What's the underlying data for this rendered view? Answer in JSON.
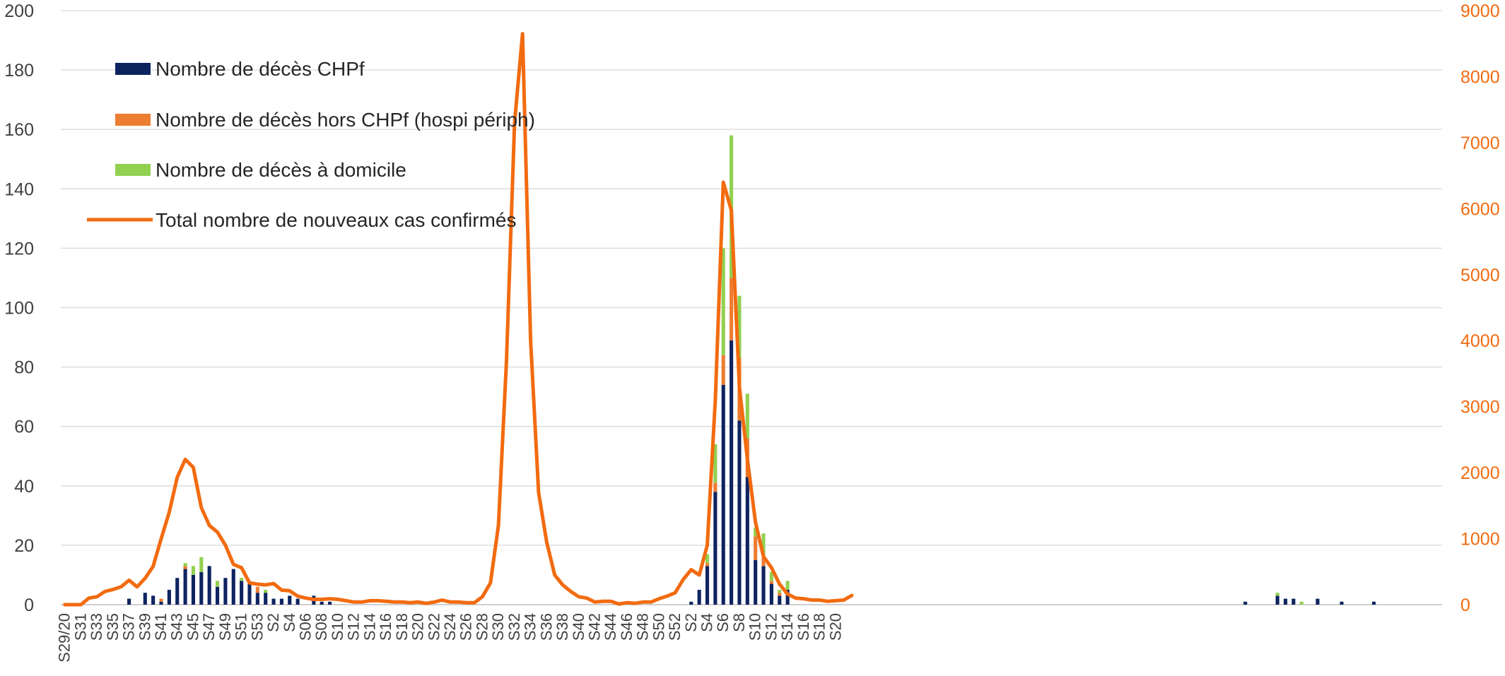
{
  "chart_data": {
    "type": "bar",
    "title": "",
    "xlabel": "",
    "ylabel": "",
    "y2label": "",
    "ylim": [
      0,
      200
    ],
    "y2lim": [
      0,
      9000
    ],
    "y_ticks": [
      0,
      20,
      40,
      60,
      80,
      100,
      120,
      140,
      160,
      180,
      200
    ],
    "y2_ticks": [
      0,
      1000,
      2000,
      3000,
      4000,
      5000,
      6000,
      7000,
      8000,
      9000
    ],
    "grid": true,
    "legend_position": "top-left",
    "x_tick_labels": [
      "S29/20",
      "S31",
      "S33",
      "S35",
      "S37",
      "S39",
      "S41",
      "S43",
      "S45",
      "S47",
      "S49",
      "S51",
      "S53",
      "S2",
      "S4",
      "S06",
      "S08",
      "S10",
      "S12",
      "S14",
      "S16",
      "S18",
      "S20",
      "S22",
      "S24",
      "S26",
      "S28",
      "S30",
      "S32",
      "S34",
      "S36",
      "S38",
      "S40",
      "S42",
      "S44",
      "S46",
      "S48",
      "S50",
      "S52",
      "S2",
      "S4",
      "S6",
      "S8",
      "S10",
      "S12",
      "S14",
      "S16",
      "S18",
      "S20"
    ],
    "colors": {
      "chpf": "#0E2461",
      "hors": "#ED7D31",
      "domicile": "#92D050",
      "total": "#F26B10"
    },
    "series": [
      {
        "name": "Nombre de décès CHPf",
        "type": "bar",
        "color_key": "chpf",
        "values": [
          0,
          0,
          0,
          0,
          0,
          0,
          0,
          0,
          2,
          0,
          4,
          3,
          1,
          5,
          9,
          12,
          10,
          11,
          13,
          6,
          9,
          12,
          8,
          7,
          4,
          4,
          2,
          2,
          3,
          2,
          0,
          3,
          1,
          1,
          0,
          0,
          0,
          0,
          0,
          0,
          0,
          0,
          0,
          0,
          0,
          0,
          0,
          0,
          0,
          0,
          0,
          0,
          0,
          0,
          0,
          0,
          0,
          0,
          0,
          0,
          0,
          0,
          0,
          0,
          0,
          0,
          0,
          0,
          0,
          0,
          0,
          0,
          0,
          0,
          0,
          0,
          0,
          0,
          1,
          5,
          13,
          38,
          74,
          89,
          62,
          43,
          15,
          13,
          7,
          3,
          5,
          0,
          0,
          0,
          0,
          0,
          0,
          0,
          0,
          0,
          0,
          0,
          0,
          0,
          0,
          0,
          0,
          0,
          0,
          0,
          0,
          0,
          0,
          0,
          0,
          0,
          0,
          0,
          0,
          0,
          0,
          0,
          0,
          0,
          0,
          0,
          0,
          0,
          0,
          0,
          0,
          0,
          0,
          0,
          0,
          0,
          0,
          0,
          0,
          0,
          0,
          0,
          0,
          0,
          0,
          0,
          0,
          1,
          0,
          0,
          0,
          3,
          2,
          2,
          0,
          0,
          2,
          0,
          0,
          1,
          0,
          0,
          0,
          1,
          0,
          0,
          0,
          0,
          0,
          0,
          0,
          0
        ]
      },
      {
        "name": "Nombre de décès hors CHPf (hospi périph)",
        "type": "bar",
        "color_key": "hors",
        "values": [
          0,
          0,
          0,
          0,
          0,
          0,
          0,
          0,
          0,
          0,
          0,
          0,
          1,
          0,
          0,
          1,
          0,
          0,
          0,
          0,
          0,
          0,
          0,
          0,
          2,
          0,
          0,
          0,
          0,
          0,
          0,
          0,
          0,
          0,
          0,
          0,
          0,
          0,
          0,
          0,
          0,
          0,
          0,
          0,
          0,
          0,
          0,
          0,
          0,
          0,
          0,
          0,
          0,
          0,
          0,
          0,
          0,
          0,
          0,
          0,
          0,
          0,
          0,
          0,
          0,
          0,
          0,
          0,
          0,
          0,
          0,
          0,
          0,
          0,
          0,
          0,
          0,
          0,
          0,
          0,
          1,
          3,
          10,
          21,
          21,
          13,
          8,
          3,
          1,
          1,
          0,
          0,
          0,
          0,
          0,
          0,
          0,
          0,
          0,
          0,
          0,
          0,
          0,
          0,
          0,
          0,
          0,
          0,
          0,
          0,
          0,
          0,
          0,
          0,
          0,
          0,
          0,
          0,
          0,
          0,
          0,
          0,
          0,
          0,
          0,
          0,
          0,
          0,
          0,
          0,
          0,
          0,
          0,
          0,
          0,
          0,
          0,
          0,
          0,
          0,
          0,
          0,
          0,
          0,
          0,
          0,
          0,
          0,
          0,
          0,
          0,
          0,
          0,
          0,
          0,
          0,
          0,
          0,
          0,
          0,
          0,
          0,
          0,
          0,
          0,
          0,
          0,
          0,
          0,
          0,
          0,
          0
        ]
      },
      {
        "name": "Nombre de décès à domicile",
        "type": "bar",
        "color_key": "domicile",
        "values": [
          0,
          0,
          0,
          0,
          0,
          0,
          0,
          0,
          0,
          0,
          0,
          0,
          0,
          0,
          0,
          1,
          3,
          5,
          0,
          2,
          0,
          0,
          1,
          0,
          0,
          1,
          0,
          0,
          0,
          0,
          0,
          0,
          0,
          0,
          0,
          0,
          0,
          0,
          0,
          0,
          0,
          0,
          0,
          0,
          0,
          0,
          0,
          0,
          0,
          0,
          0,
          0,
          0,
          0,
          0,
          0,
          0,
          0,
          0,
          0,
          0,
          0,
          0,
          0,
          0,
          0,
          0,
          0,
          0,
          0,
          0,
          0,
          0,
          0,
          0,
          0,
          0,
          0,
          0,
          0,
          3,
          13,
          36,
          48,
          21,
          15,
          3,
          8,
          3,
          1,
          3,
          0,
          0,
          0,
          0,
          0,
          0,
          0,
          0,
          0,
          0,
          0,
          0,
          0,
          0,
          0,
          0,
          0,
          0,
          0,
          0,
          0,
          0,
          0,
          0,
          0,
          0,
          0,
          0,
          0,
          0,
          0,
          0,
          0,
          0,
          0,
          0,
          0,
          0,
          0,
          0,
          0,
          0,
          0,
          0,
          0,
          0,
          0,
          0,
          0,
          0,
          0,
          0,
          0,
          0,
          0,
          0,
          0,
          0,
          0,
          0,
          1,
          0,
          0,
          1,
          0,
          0,
          0,
          0,
          0,
          0,
          0,
          0,
          0,
          0,
          0,
          0,
          0,
          0,
          0,
          0,
          0
        ]
      },
      {
        "name": "Total nombre de nouveaux cas confirmés",
        "type": "line",
        "axis": "right",
        "color_key": "total",
        "values": [
          0,
          0,
          0,
          100,
          120,
          200,
          230,
          270,
          370,
          270,
          400,
          580,
          1000,
          1400,
          1930,
          2200,
          2080,
          1470,
          1200,
          1100,
          900,
          610,
          560,
          330,
          310,
          300,
          320,
          220,
          210,
          130,
          100,
          80,
          80,
          90,
          80,
          60,
          40,
          40,
          60,
          60,
          50,
          40,
          40,
          30,
          40,
          20,
          40,
          70,
          40,
          40,
          30,
          30,
          120,
          330,
          1200,
          3700,
          7300,
          8650,
          4000,
          1700,
          950,
          450,
          300,
          200,
          120,
          100,
          40,
          50,
          50,
          10,
          30,
          20,
          40,
          40,
          90,
          130,
          180,
          380,
          530,
          450,
          900,
          3100,
          6400,
          5970,
          3300,
          2200,
          1250,
          730,
          560,
          310,
          160,
          100,
          90,
          70,
          70,
          50,
          60,
          70,
          140
        ]
      }
    ]
  },
  "legend": {
    "items": [
      {
        "label": "Nombre de décès CHPf",
        "kind": "bar",
        "color": "#0E2461"
      },
      {
        "label": "Nombre de décès hors CHPf (hospi périph)",
        "kind": "bar",
        "color": "#ED7D31"
      },
      {
        "label": "Nombre de décès à domicile",
        "kind": "bar",
        "color": "#92D050"
      },
      {
        "label": "Total nombre de nouveaux cas confirmés",
        "kind": "line",
        "color": "#F26B10"
      }
    ]
  }
}
